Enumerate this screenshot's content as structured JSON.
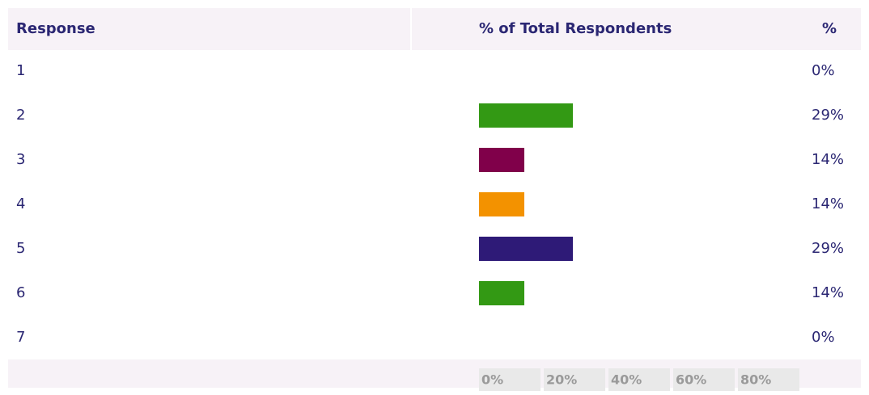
{
  "chart_data": {
    "type": "bar",
    "orientation": "horizontal",
    "headers": [
      "Response",
      "% of Total Respondents",
      "%"
    ],
    "categories": [
      "1",
      "2",
      "3",
      "4",
      "5",
      "6",
      "7"
    ],
    "values": [
      0,
      29,
      14,
      14,
      29,
      14,
      0
    ],
    "value_labels": [
      "0%",
      "29%",
      "14%",
      "14%",
      "29%",
      "14%",
      "0%"
    ],
    "colors": [
      null,
      "#339914",
      "#80004a",
      "#f39200",
      "#2e1a77",
      "#339914",
      null
    ],
    "xlim": [
      0,
      100
    ],
    "xticks": [
      {
        "value": 0,
        "label": "0%"
      },
      {
        "value": 20,
        "label": "20%"
      },
      {
        "value": 40,
        "label": "40%"
      },
      {
        "value": 60,
        "label": "60%"
      },
      {
        "value": 80,
        "label": "80%"
      }
    ]
  }
}
